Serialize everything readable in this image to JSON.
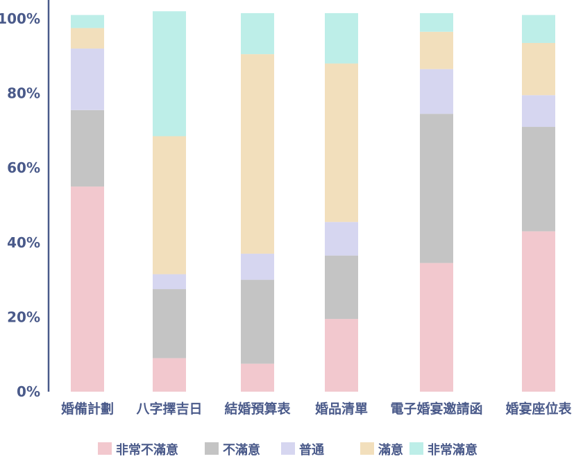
{
  "chart_data": {
    "type": "bar",
    "stacked": "percent",
    "title": "",
    "xlabel": "",
    "ylabel": "",
    "ylim": [
      0,
      100
    ],
    "yticks": [
      "0%",
      "20%",
      "40%",
      "60%",
      "80%",
      "100%"
    ],
    "grid": false,
    "legend_position": "bottom",
    "categories": [
      "婚備計劃",
      "八字擇吉日",
      "結婚預算表",
      "婚品清單",
      "電子婚宴邀請函",
      "婚宴座位表"
    ],
    "series": [
      {
        "name": "非常不滿意",
        "color": "#f2c8ce",
        "values": [
          55,
          9,
          7.5,
          19.5,
          34.5,
          43
        ]
      },
      {
        "name": "不滿意",
        "color": "#c4c4c4",
        "values": [
          20.5,
          18.5,
          22.5,
          17,
          40,
          28
        ]
      },
      {
        "name": "普通",
        "color": "#d6d6f0",
        "values": [
          16.5,
          4,
          7,
          9,
          12,
          8.5
        ]
      },
      {
        "name": "滿意",
        "color": "#f2dfbc",
        "values": [
          5.5,
          37,
          53.5,
          42.5,
          10,
          14
        ]
      },
      {
        "name": "非常滿意",
        "color": "#bdeee8",
        "values": [
          3.5,
          33.5,
          11,
          13.5,
          5,
          7.5
        ]
      }
    ]
  },
  "colors": {
    "axis": "#4a5a8a",
    "text": "#4a5a8a"
  }
}
